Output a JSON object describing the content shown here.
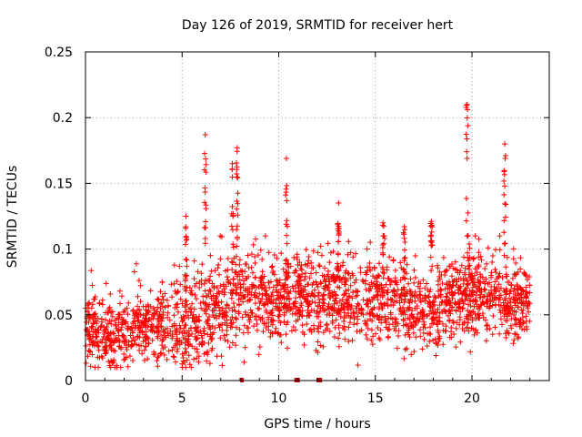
{
  "chart_data": {
    "type": "scatter",
    "title": "Day 126 of 2019, SRMTID for receiver hert",
    "xlabel": "GPS time / hours",
    "ylabel": "SRMTID / TECUs",
    "xlim": [
      0,
      24
    ],
    "ylim": [
      0,
      0.25
    ],
    "x_ticks": [
      0,
      5,
      10,
      15,
      20
    ],
    "x_tick_labels": [
      "0",
      "5",
      "10",
      "15",
      "20"
    ],
    "y_ticks": [
      0,
      0.05,
      0.1,
      0.15,
      0.2,
      0.25
    ],
    "y_tick_labels": [
      "0",
      "0.05",
      "0.1",
      "0.15",
      "0.2",
      "0.25"
    ],
    "grid": true,
    "marker": "plus",
    "series_color": "#ff0000",
    "gap_color": "#cc0000",
    "data_end_hour": 23.0,
    "envelope": [
      {
        "t": 0.0,
        "mean": 0.042,
        "spread": 0.014
      },
      {
        "t": 1.0,
        "mean": 0.033,
        "spread": 0.012
      },
      {
        "t": 2.0,
        "mean": 0.034,
        "spread": 0.012
      },
      {
        "t": 3.0,
        "mean": 0.04,
        "spread": 0.013
      },
      {
        "t": 4.0,
        "mean": 0.045,
        "spread": 0.015
      },
      {
        "t": 5.0,
        "mean": 0.04,
        "spread": 0.016
      },
      {
        "t": 6.0,
        "mean": 0.048,
        "spread": 0.018
      },
      {
        "t": 7.0,
        "mean": 0.055,
        "spread": 0.018
      },
      {
        "t": 8.0,
        "mean": 0.065,
        "spread": 0.018
      },
      {
        "t": 9.0,
        "mean": 0.062,
        "spread": 0.016
      },
      {
        "t": 10.0,
        "mean": 0.06,
        "spread": 0.015
      },
      {
        "t": 11.0,
        "mean": 0.068,
        "spread": 0.016
      },
      {
        "t": 12.0,
        "mean": 0.058,
        "spread": 0.016
      },
      {
        "t": 13.0,
        "mean": 0.065,
        "spread": 0.016
      },
      {
        "t": 14.0,
        "mean": 0.06,
        "spread": 0.016
      },
      {
        "t": 15.0,
        "mean": 0.062,
        "spread": 0.016
      },
      {
        "t": 16.0,
        "mean": 0.06,
        "spread": 0.016
      },
      {
        "t": 17.0,
        "mean": 0.052,
        "spread": 0.014
      },
      {
        "t": 18.0,
        "mean": 0.055,
        "spread": 0.014
      },
      {
        "t": 19.0,
        "mean": 0.06,
        "spread": 0.016
      },
      {
        "t": 20.0,
        "mean": 0.064,
        "spread": 0.016
      },
      {
        "t": 21.0,
        "mean": 0.068,
        "spread": 0.016
      },
      {
        "t": 22.0,
        "mean": 0.058,
        "spread": 0.016
      },
      {
        "t": 23.0,
        "mean": 0.06,
        "spread": 0.014
      }
    ],
    "spikes": [
      {
        "t": 5.2,
        "peak": 0.125
      },
      {
        "t": 6.2,
        "peak": 0.187
      },
      {
        "t": 7.6,
        "peak": 0.165
      },
      {
        "t": 7.85,
        "peak": 0.177
      },
      {
        "t": 10.4,
        "peak": 0.169
      },
      {
        "t": 13.1,
        "peak": 0.135
      },
      {
        "t": 15.4,
        "peak": 0.12
      },
      {
        "t": 16.5,
        "peak": 0.117
      },
      {
        "t": 17.9,
        "peak": 0.121
      },
      {
        "t": 19.75,
        "peak": 0.21
      },
      {
        "t": 21.7,
        "peak": 0.18
      }
    ],
    "zero_markers": [
      8.1,
      10.9,
      11.0,
      12.05,
      12.15
    ]
  }
}
